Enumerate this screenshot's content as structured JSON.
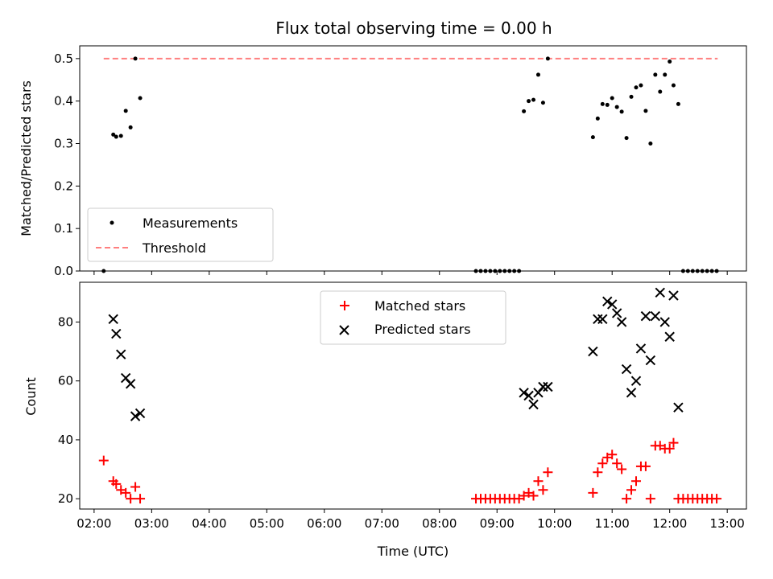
{
  "chart_data": [
    {
      "type": "scatter",
      "title": "Flux total observing time = 0.00 h",
      "xlabel": "",
      "ylabel": "Matched/Predicted stars",
      "ylim": [
        0,
        0.53
      ],
      "yticks": [
        "0.0",
        "0.1",
        "0.2",
        "0.3",
        "0.4",
        "0.5"
      ],
      "xlim": [
        "01:45",
        "13:20"
      ],
      "x_type": "time",
      "legend": {
        "position": "lower-left",
        "entries": [
          "Measurements",
          "Threshold"
        ]
      },
      "threshold": {
        "name": "Threshold",
        "y": 0.5,
        "x_range": [
          "02:10",
          "12:50"
        ],
        "color": "#ff7f7f",
        "style": "dashed"
      },
      "series": [
        {
          "name": "Measurements",
          "color": "#000000",
          "marker": "dot",
          "points": [
            [
              "02:10",
              0.0
            ],
            [
              "02:20",
              0.321
            ],
            [
              "02:23",
              0.316
            ],
            [
              "02:28",
              0.318
            ],
            [
              "02:33",
              0.377
            ],
            [
              "02:38",
              0.338
            ],
            [
              "02:43",
              0.5
            ],
            [
              "02:48",
              0.407
            ],
            [
              "08:38",
              0.0
            ],
            [
              "08:43",
              0.0
            ],
            [
              "08:48",
              0.0
            ],
            [
              "08:53",
              0.0
            ],
            [
              "08:58",
              0.0
            ],
            [
              "09:03",
              0.0
            ],
            [
              "09:08",
              0.0
            ],
            [
              "09:13",
              0.0
            ],
            [
              "09:18",
              0.0
            ],
            [
              "09:23",
              0.0
            ],
            [
              "09:28",
              0.376
            ],
            [
              "09:33",
              0.4
            ],
            [
              "09:38",
              0.403
            ],
            [
              "09:43",
              0.462
            ],
            [
              "09:48",
              0.396
            ],
            [
              "09:53",
              0.5
            ],
            [
              "10:40",
              0.315
            ],
            [
              "10:45",
              0.359
            ],
            [
              "10:50",
              0.393
            ],
            [
              "10:55",
              0.391
            ],
            [
              "11:00",
              0.407
            ],
            [
              "11:05",
              0.386
            ],
            [
              "11:10",
              0.375
            ],
            [
              "11:15",
              0.313
            ],
            [
              "11:20",
              0.41
            ],
            [
              "11:25",
              0.432
            ],
            [
              "11:30",
              0.437
            ],
            [
              "11:35",
              0.377
            ],
            [
              "11:40",
              0.3
            ],
            [
              "11:45",
              0.462
            ],
            [
              "11:50",
              0.422
            ],
            [
              "11:55",
              0.462
            ],
            [
              "12:00",
              0.493
            ],
            [
              "12:04",
              0.437
            ],
            [
              "12:09",
              0.393
            ],
            [
              "12:14",
              0.0
            ],
            [
              "12:19",
              0.0
            ],
            [
              "12:24",
              0.0
            ],
            [
              "12:29",
              0.0
            ],
            [
              "12:34",
              0.0
            ],
            [
              "12:39",
              0.0
            ],
            [
              "12:44",
              0.0
            ],
            [
              "12:49",
              0.0
            ]
          ]
        }
      ]
    },
    {
      "type": "scatter",
      "title": "",
      "xlabel": "Time (UTC)",
      "ylabel": "Count",
      "ylim": [
        16.5,
        93.5
      ],
      "yticks": [
        "20",
        "40",
        "60",
        "80"
      ],
      "xlim": [
        "01:45",
        "13:20"
      ],
      "x_type": "time",
      "xticks": [
        "02:00",
        "03:00",
        "04:00",
        "05:00",
        "06:00",
        "07:00",
        "08:00",
        "09:00",
        "10:00",
        "11:00",
        "12:00",
        "13:00"
      ],
      "legend": {
        "position": "upper-center",
        "entries": [
          "Matched stars",
          "Predicted stars"
        ]
      },
      "series": [
        {
          "name": "Matched stars",
          "color": "#ff0000",
          "marker": "plus",
          "points": [
            [
              "02:10",
              33
            ],
            [
              "02:20",
              26
            ],
            [
              "02:23",
              25
            ],
            [
              "02:28",
              23
            ],
            [
              "02:33",
              22
            ],
            [
              "02:38",
              20
            ],
            [
              "02:43",
              24
            ],
            [
              "02:48",
              20
            ],
            [
              "08:38",
              20
            ],
            [
              "08:43",
              20
            ],
            [
              "08:48",
              20
            ],
            [
              "08:53",
              20
            ],
            [
              "08:58",
              20
            ],
            [
              "09:03",
              20
            ],
            [
              "09:08",
              20
            ],
            [
              "09:13",
              20
            ],
            [
              "09:18",
              20
            ],
            [
              "09:23",
              20
            ],
            [
              "09:28",
              21
            ],
            [
              "09:33",
              22
            ],
            [
              "09:38",
              21
            ],
            [
              "09:43",
              26
            ],
            [
              "09:48",
              23
            ],
            [
              "09:53",
              29
            ],
            [
              "10:40",
              22
            ],
            [
              "10:45",
              29
            ],
            [
              "10:50",
              32
            ],
            [
              "10:55",
              34
            ],
            [
              "11:00",
              35
            ],
            [
              "11:05",
              32
            ],
            [
              "11:10",
              30
            ],
            [
              "11:15",
              20
            ],
            [
              "11:20",
              23
            ],
            [
              "11:25",
              26
            ],
            [
              "11:30",
              31
            ],
            [
              "11:35",
              31
            ],
            [
              "11:40",
              20
            ],
            [
              "11:45",
              38
            ],
            [
              "11:50",
              38
            ],
            [
              "11:55",
              37
            ],
            [
              "12:00",
              37
            ],
            [
              "12:04",
              39
            ],
            [
              "12:09",
              20
            ],
            [
              "12:14",
              20
            ],
            [
              "12:19",
              20
            ],
            [
              "12:24",
              20
            ],
            [
              "12:29",
              20
            ],
            [
              "12:34",
              20
            ],
            [
              "12:39",
              20
            ],
            [
              "12:44",
              20
            ],
            [
              "12:49",
              20
            ]
          ]
        },
        {
          "name": "Predicted stars",
          "color": "#000000",
          "marker": "x",
          "points": [
            [
              "02:20",
              81
            ],
            [
              "02:23",
              76
            ],
            [
              "02:28",
              69
            ],
            [
              "02:33",
              61
            ],
            [
              "02:38",
              59
            ],
            [
              "02:43",
              48
            ],
            [
              "02:48",
              49
            ],
            [
              "09:28",
              56
            ],
            [
              "09:33",
              55
            ],
            [
              "09:38",
              52
            ],
            [
              "09:43",
              56
            ],
            [
              "09:48",
              58
            ],
            [
              "09:53",
              58
            ],
            [
              "10:40",
              70
            ],
            [
              "10:45",
              81
            ],
            [
              "10:50",
              81
            ],
            [
              "10:55",
              87
            ],
            [
              "11:00",
              86
            ],
            [
              "11:05",
              83
            ],
            [
              "11:10",
              80
            ],
            [
              "11:15",
              64
            ],
            [
              "11:20",
              56
            ],
            [
              "11:25",
              60
            ],
            [
              "11:30",
              71
            ],
            [
              "11:35",
              82
            ],
            [
              "11:40",
              67
            ],
            [
              "11:45",
              82
            ],
            [
              "11:50",
              90
            ],
            [
              "11:55",
              80
            ],
            [
              "12:00",
              75
            ],
            [
              "12:04",
              89
            ],
            [
              "12:09",
              51
            ]
          ]
        }
      ]
    }
  ]
}
